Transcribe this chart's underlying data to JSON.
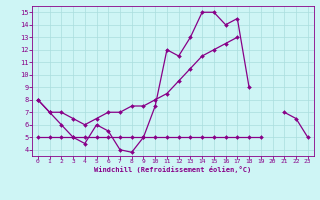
{
  "x_values": [
    0,
    1,
    2,
    3,
    4,
    5,
    6,
    7,
    8,
    9,
    10,
    11,
    12,
    13,
    14,
    15,
    16,
    17,
    18,
    19,
    20,
    21,
    22,
    23
  ],
  "y_zigzag": [
    8.0,
    7.0,
    6.0,
    5.0,
    4.5,
    6.0,
    5.5,
    4.0,
    3.8,
    5.0,
    7.5,
    12.0,
    11.5,
    13.0,
    15.0,
    15.0,
    14.0,
    14.5,
    9.0,
    null,
    null,
    7.0,
    6.5,
    5.0
  ],
  "y_upper": [
    8.0,
    7.0,
    7.0,
    6.5,
    6.0,
    6.5,
    7.0,
    7.0,
    7.5,
    7.5,
    8.0,
    8.5,
    9.5,
    10.5,
    11.5,
    12.0,
    12.5,
    13.0,
    null,
    null,
    null,
    null,
    null,
    null
  ],
  "y_lower": [
    5.0,
    5.0,
    5.0,
    5.0,
    5.0,
    5.0,
    5.0,
    5.0,
    5.0,
    5.0,
    5.0,
    5.0,
    5.0,
    5.0,
    5.0,
    5.0,
    5.0,
    5.0,
    5.0,
    5.0,
    null,
    null,
    null,
    null
  ],
  "bg_color": "#cef5f5",
  "line_color": "#880088",
  "grid_color": "#aadddd",
  "xlabel": "Windchill (Refroidissement éolien,°C)",
  "xlim": [
    -0.5,
    23.5
  ],
  "ylim": [
    3.5,
    15.5
  ],
  "marker": "D",
  "marker_size": 2.0,
  "line_width": 0.9
}
